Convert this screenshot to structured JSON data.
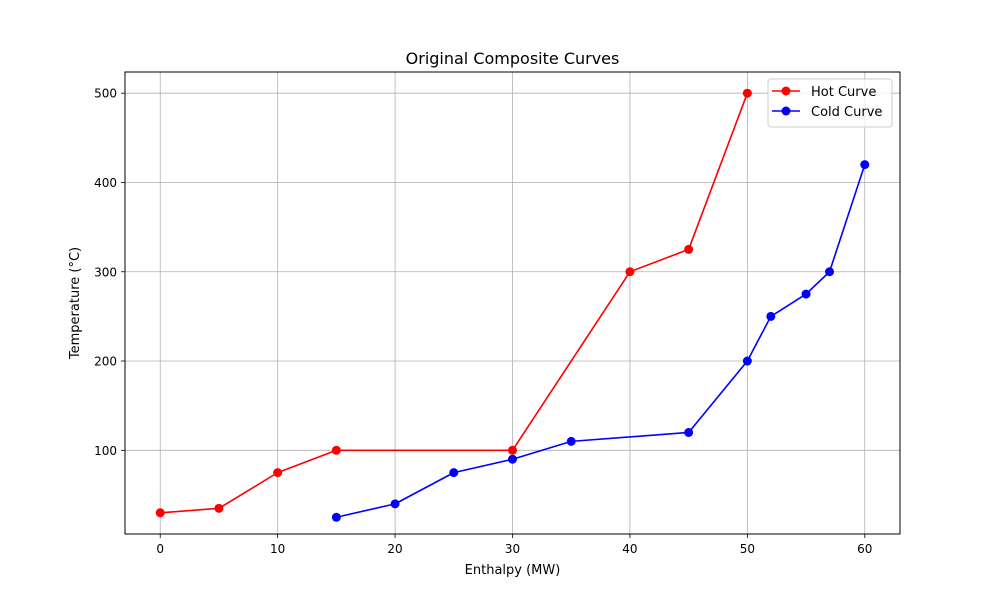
{
  "chart_data": {
    "type": "line",
    "title": "Original Composite Curves",
    "xlabel": "Enthalpy (MW)",
    "ylabel": "Temperature (°C)",
    "xlim": [
      -3,
      63
    ],
    "ylim": [
      6.25,
      523.75
    ],
    "xticks": [
      0,
      10,
      20,
      30,
      40,
      50,
      60
    ],
    "yticks": [
      100,
      200,
      300,
      400,
      500
    ],
    "grid": true,
    "legend_position": "top-right",
    "series": [
      {
        "name": "Hot Curve",
        "color": "#ff0000",
        "marker": "circle",
        "x": [
          0,
          5,
          10,
          15,
          30,
          40,
          45,
          50
        ],
        "y": [
          30,
          35,
          75,
          100,
          100,
          300,
          325,
          500
        ]
      },
      {
        "name": "Cold Curve",
        "color": "#0000ff",
        "marker": "circle",
        "x": [
          15,
          20,
          25,
          30,
          35,
          45,
          50,
          52,
          55,
          57,
          60
        ],
        "y": [
          25,
          40,
          75,
          90,
          110,
          120,
          200,
          250,
          275,
          300,
          420
        ]
      }
    ]
  }
}
